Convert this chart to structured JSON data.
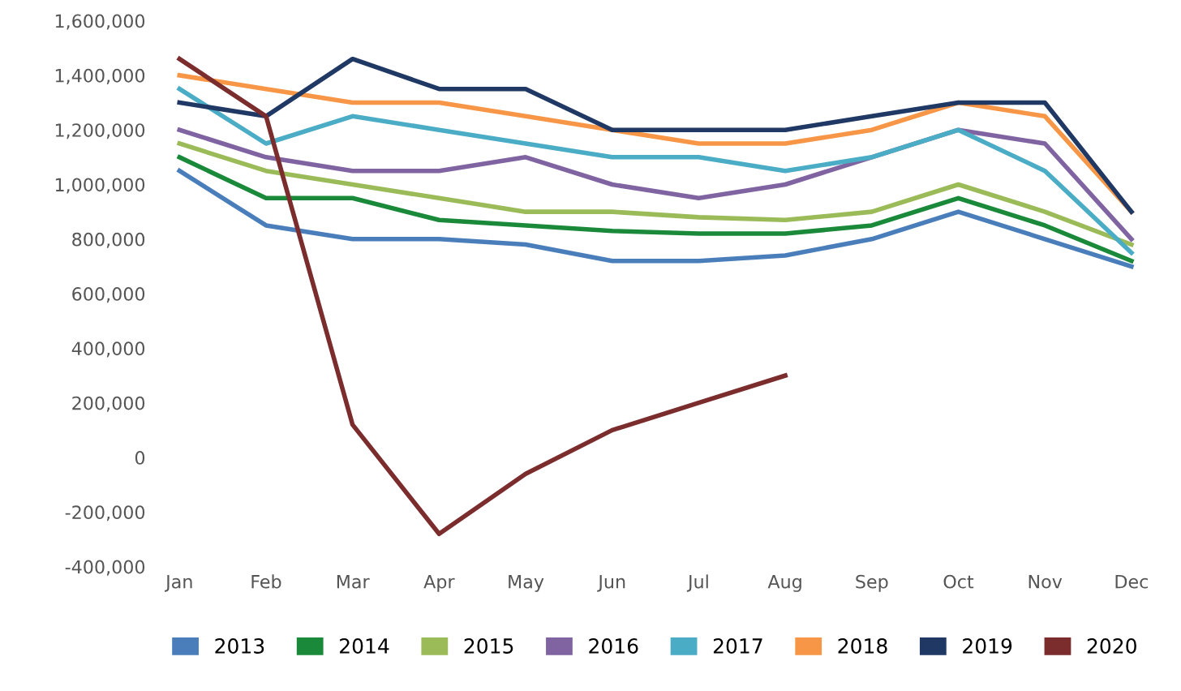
{
  "chart_data": {
    "type": "line",
    "categories": [
      "Jan",
      "Feb",
      "Mar",
      "Apr",
      "May",
      "Jun",
      "Jul",
      "Aug",
      "Sep",
      "Oct",
      "Nov",
      "Dec"
    ],
    "series": [
      {
        "name": "2013",
        "color": "#4a7ebb",
        "values": [
          1050000,
          850000,
          800000,
          800000,
          780000,
          720000,
          720000,
          740000,
          800000,
          900000,
          800000,
          700000
        ]
      },
      {
        "name": "2014",
        "color": "#1a8a3a",
        "values": [
          1100000,
          950000,
          950000,
          870000,
          850000,
          830000,
          820000,
          820000,
          850000,
          950000,
          850000,
          720000
        ]
      },
      {
        "name": "2015",
        "color": "#9bbb59",
        "values": [
          1150000,
          1050000,
          1000000,
          950000,
          900000,
          900000,
          880000,
          870000,
          900000,
          1000000,
          900000,
          780000
        ]
      },
      {
        "name": "2016",
        "color": "#8064a2",
        "values": [
          1200000,
          1100000,
          1050000,
          1050000,
          1100000,
          1000000,
          950000,
          1000000,
          1100000,
          1200000,
          1150000,
          800000
        ]
      },
      {
        "name": "2017",
        "color": "#4bacc6",
        "values": [
          1350000,
          1150000,
          1250000,
          1200000,
          1150000,
          1100000,
          1100000,
          1050000,
          1100000,
          1200000,
          1050000,
          750000
        ]
      },
      {
        "name": "2018",
        "color": "#f79646",
        "values": [
          1400000,
          1350000,
          1300000,
          1300000,
          1250000,
          1200000,
          1150000,
          1150000,
          1200000,
          1300000,
          1250000,
          900000
        ]
      },
      {
        "name": "2019",
        "color": "#1f3864",
        "values": [
          1300000,
          1250000,
          1460000,
          1350000,
          1350000,
          1200000,
          1200000,
          1200000,
          1250000,
          1300000,
          1300000,
          900000
        ]
      },
      {
        "name": "2020",
        "color": "#7b2c2c",
        "values": [
          1460000,
          1250000,
          120000,
          -280000,
          -60000,
          100000,
          200000,
          300000,
          null,
          null,
          null,
          null
        ]
      }
    ],
    "ylim": [
      -400000,
      1600000
    ],
    "yticks": [
      {
        "value": -400000,
        "label": "-400,000"
      },
      {
        "value": -200000,
        "label": "-200,000"
      },
      0,
      {
        "value": 200000,
        "label": "200,000"
      },
      {
        "value": 400000,
        "label": "400,000"
      },
      {
        "value": 600000,
        "label": "600,000"
      },
      {
        "value": 800000,
        "label": "800,000"
      },
      {
        "value": 1000000,
        "label": "1,000,000"
      },
      {
        "value": 1200000,
        "label": "1,200,000"
      },
      {
        "value": 1400000,
        "label": "1,400,000"
      },
      {
        "value": 1600000,
        "label": "1,600,000"
      }
    ],
    "legend": "bottom",
    "grid": false,
    "marker": "none",
    "line_style": "solid"
  }
}
